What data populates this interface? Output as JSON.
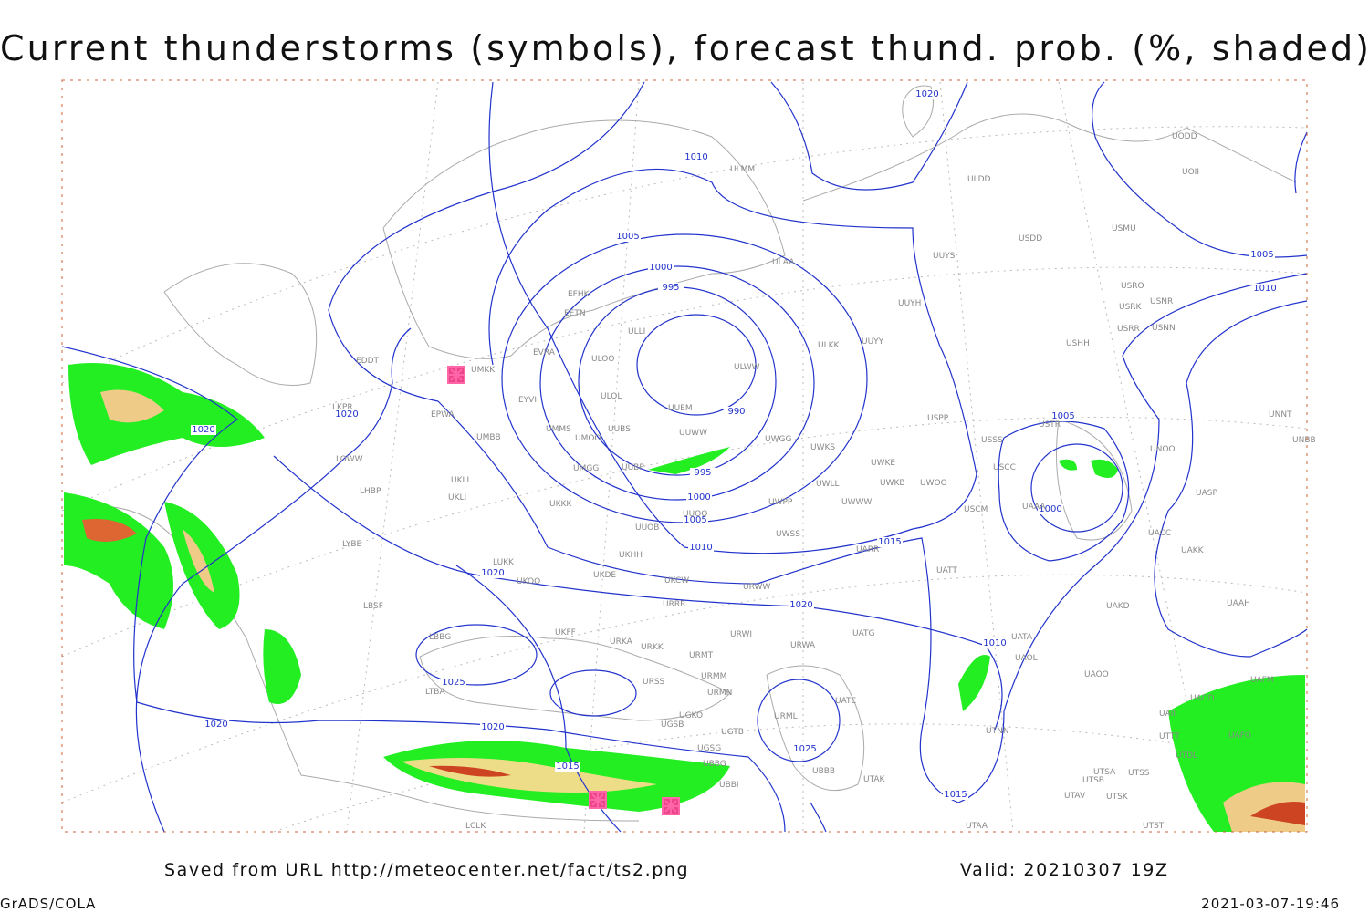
{
  "header": {
    "title": "Current thunderstorms (symbols), forecast thund. prob. (%, shaded)"
  },
  "stations": [
    "ULMM",
    "ULDD",
    "UODD",
    "UOII",
    "USMU",
    "USDD",
    "UUYS",
    "ULAA",
    "USRO",
    "USRK",
    "USNR",
    "USRR",
    "USNN",
    "EFHK",
    "EETN",
    "UUYH",
    "ULLI",
    "USHH",
    "ULKK",
    "UUYY",
    "EDDT",
    "ULOO",
    "EVRA",
    "UMKK",
    "ULWW",
    "ULOL",
    "EYVI",
    "UUEM",
    "LKPR",
    "EPWA",
    "UMMS",
    "USPP",
    "USTR",
    "UNNT",
    "UUWW",
    "UUBS",
    "UMOO",
    "UWGG",
    "USSS",
    "UNBB",
    "UNOO",
    "UMBB",
    "UWKS",
    "LOWW",
    "UWKE",
    "UMGG",
    "UUBP",
    "USCC",
    "UKLL",
    "UWKB",
    "UWOO",
    "UWLL",
    "UKLI",
    "LHBP",
    "UASP",
    "UWPP",
    "UWWW",
    "UKKK",
    "USCM",
    "UAAA",
    "UUOO",
    "UUOB",
    "UWSS",
    "UACC",
    "LYBE",
    "UARR",
    "UKHH",
    "LUKK",
    "UAKK",
    "UKDE",
    "UATT",
    "UKOO",
    "UKCW",
    "URWW",
    "LBSF",
    "URRR",
    "UAKD",
    "UAAH",
    "UKFF",
    "URWI",
    "UATG",
    "LBBG",
    "URKA",
    "URKK",
    "URWA",
    "UATA",
    "UAOL",
    "URMT",
    "UAOO",
    "URMM",
    "URSS",
    "LTBA",
    "URMN",
    "UATE",
    "UAII",
    "UGKO",
    "URML",
    "UGSB",
    "UGTB",
    "UTTT",
    "UTNN",
    "UGSG",
    "UTDL",
    "UBBG",
    "UBBB",
    "UTSA",
    "UTSS",
    "UTAK",
    "UTSB",
    "UBBI",
    "UTAV",
    "UTSK",
    "LCLK",
    "UTAA",
    "UTST",
    "UADD",
    "UAFM",
    "UAFO"
  ],
  "isobars": {
    "labels": [
      1020,
      1010,
      1005,
      1000,
      995,
      990,
      995,
      1000,
      1005,
      1010,
      1015,
      1020,
      1020,
      1025,
      1020,
      1020,
      1015,
      1025,
      1015,
      1010,
      1005,
      1000,
      1005,
      1010,
      1020,
      1020
    ]
  },
  "footer": {
    "source": "Saved from URL http://meteocenter.net/fact/ts2.png",
    "valid": "Valid: 20210307 19Z",
    "software": "GrADS/COLA",
    "timestamp": "2021-03-07-19:46"
  }
}
